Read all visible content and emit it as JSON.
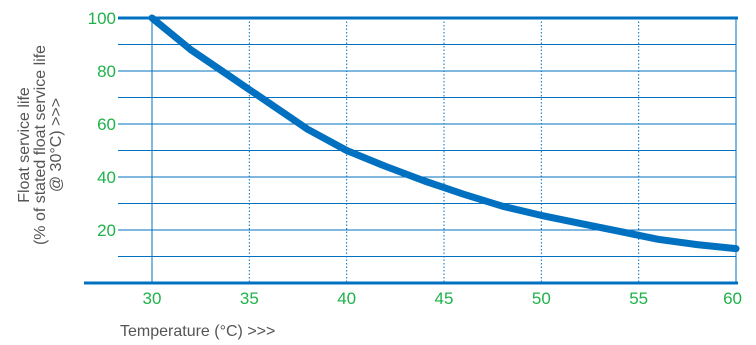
{
  "chart_data": {
    "type": "line",
    "xlabel": "Temperature (°C)  >>>",
    "ylabel_lines": [
      "Float service life",
      "(% of stated float service life",
      "@ 30°C) >>>"
    ],
    "x_ticks": [
      30,
      35,
      40,
      45,
      50,
      55,
      60
    ],
    "y_ticks": [
      20,
      40,
      60,
      80,
      100
    ],
    "xlim": [
      30,
      60
    ],
    "ylim": [
      0,
      100
    ],
    "grid": true,
    "colors": {
      "line": "#0070c0",
      "grid": "#0070c0",
      "tick_text": "#1fb24a",
      "axis_title": "#555555"
    },
    "series": [
      {
        "x": [
          30,
          32,
          34,
          35,
          36,
          38,
          40,
          42,
          44,
          45,
          46,
          48,
          50,
          52,
          54,
          55,
          56,
          58,
          60
        ],
        "y": [
          100,
          88,
          78,
          73,
          68,
          58,
          50,
          44,
          38.5,
          36,
          33.5,
          29,
          25.5,
          22.5,
          19.5,
          18,
          16.5,
          14.5,
          13
        ]
      }
    ]
  }
}
